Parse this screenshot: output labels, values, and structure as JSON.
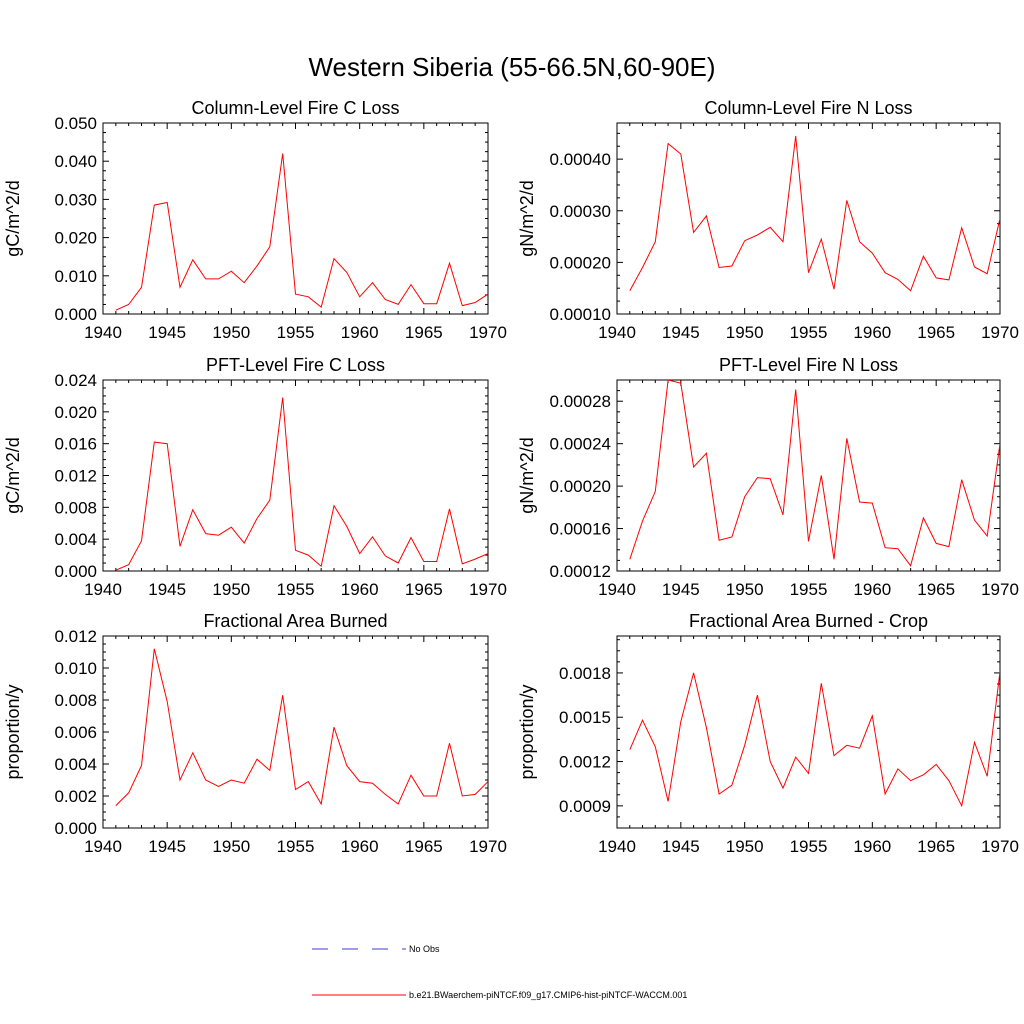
{
  "title": "Western Siberia (55-66.5N,60-90E)",
  "colors": {
    "model": "#ff0000",
    "obs": "#3b3bd6",
    "axis": "#000000"
  },
  "legend": {
    "obs_label": "No Obs",
    "model_label": "b.e21.BWaerchem-piNTCF.f09_g17.CMIP6-hist-piNTCF-WACCM.001"
  },
  "chart_data": [
    {
      "type": "line",
      "title": "Column-Level Fire C Loss",
      "xlabel": "",
      "ylabel": "gC/m^2/d",
      "xlim": [
        1940,
        1970
      ],
      "ylim": [
        0,
        0.05
      ],
      "yticks": [
        "0.000",
        "0.010",
        "0.020",
        "0.030",
        "0.040",
        "0.050"
      ],
      "xticks": [
        "1940",
        "1945",
        "1950",
        "1955",
        "1960",
        "1965",
        "1970"
      ],
      "x": [
        1941,
        1942,
        1943,
        1944,
        1945,
        1946,
        1947,
        1948,
        1949,
        1950,
        1951,
        1952,
        1953,
        1954,
        1955,
        1956,
        1957,
        1958,
        1959,
        1960,
        1961,
        1962,
        1963,
        1964,
        1965,
        1966,
        1967,
        1968,
        1969,
        1970
      ],
      "series": [
        {
          "values": [
            0.001,
            0.0025,
            0.007,
            0.0285,
            0.0292,
            0.007,
            0.0142,
            0.0092,
            0.0092,
            0.0112,
            0.0082,
            0.0126,
            0.0176,
            0.042,
            0.0052,
            0.0045,
            0.0018,
            0.0145,
            0.0109,
            0.0045,
            0.0082,
            0.0038,
            0.0025,
            0.0077,
            0.0027,
            0.0027,
            0.0133,
            0.0022,
            0.003,
            0.0052
          ]
        }
      ]
    },
    {
      "type": "line",
      "title": "Column-Level Fire N Loss",
      "xlabel": "",
      "ylabel": "gN/m^2/d",
      "xlim": [
        1940,
        1970
      ],
      "ylim": [
        0.0001,
        0.00047
      ],
      "yticks": [
        "0.00010",
        "0.00020",
        "0.00030",
        "0.00040"
      ],
      "xticks": [
        "1940",
        "1945",
        "1950",
        "1955",
        "1960",
        "1965",
        "1970"
      ],
      "x": [
        1941,
        1942,
        1943,
        1944,
        1945,
        1946,
        1947,
        1948,
        1949,
        1950,
        1951,
        1952,
        1953,
        1954,
        1955,
        1956,
        1957,
        1958,
        1959,
        1960,
        1961,
        1962,
        1963,
        1964,
        1965,
        1966,
        1967,
        1968,
        1969,
        1970
      ],
      "series": [
        {
          "values": [
            0.000145,
            0.00019,
            0.00024,
            0.00043,
            0.00041,
            0.000258,
            0.00029,
            0.00019,
            0.000193,
            0.000242,
            0.000253,
            0.000268,
            0.00024,
            0.000445,
            0.00018,
            0.000245,
            0.000148,
            0.00032,
            0.00024,
            0.000218,
            0.00018,
            0.000167,
            0.000145,
            0.000212,
            0.00017,
            0.000166,
            0.000267,
            0.000191,
            0.000178,
            0.000285
          ]
        }
      ]
    },
    {
      "type": "line",
      "title": "PFT-Level Fire C Loss",
      "xlabel": "",
      "ylabel": "gC/m^2/d",
      "xlim": [
        1940,
        1970
      ],
      "ylim": [
        0,
        0.024
      ],
      "yticks": [
        "0.000",
        "0.004",
        "0.008",
        "0.012",
        "0.016",
        "0.020",
        "0.024"
      ],
      "xticks": [
        "1940",
        "1945",
        "1950",
        "1955",
        "1960",
        "1965",
        "1970"
      ],
      "x": [
        1941,
        1942,
        1943,
        1944,
        1945,
        1946,
        1947,
        1948,
        1949,
        1950,
        1951,
        1952,
        1953,
        1954,
        1955,
        1956,
        1957,
        1958,
        1959,
        1960,
        1961,
        1962,
        1963,
        1964,
        1965,
        1966,
        1967,
        1968,
        1969,
        1970
      ],
      "series": [
        {
          "values": [
            0.0001,
            0.0008,
            0.0038,
            0.0162,
            0.016,
            0.0031,
            0.0077,
            0.0047,
            0.0045,
            0.0055,
            0.0035,
            0.0066,
            0.0089,
            0.0218,
            0.0026,
            0.002,
            0.0006,
            0.0082,
            0.0056,
            0.0022,
            0.0043,
            0.0019,
            0.001,
            0.0042,
            0.0012,
            0.0012,
            0.0078,
            0.0009,
            0.0015,
            0.0022
          ]
        }
      ]
    },
    {
      "type": "line",
      "title": "PFT-Level Fire N Loss",
      "xlabel": "",
      "ylabel": "gN/m^2/d",
      "xlim": [
        1940,
        1970
      ],
      "ylim": [
        0.00012,
        0.0003
      ],
      "yticks": [
        "0.00012",
        "0.00016",
        "0.00020",
        "0.00024",
        "0.00028"
      ],
      "xticks": [
        "1940",
        "1945",
        "1950",
        "1955",
        "1960",
        "1965",
        "1970"
      ],
      "x": [
        1941,
        1942,
        1943,
        1944,
        1945,
        1946,
        1947,
        1948,
        1949,
        1950,
        1951,
        1952,
        1953,
        1954,
        1955,
        1956,
        1957,
        1958,
        1959,
        1960,
        1961,
        1962,
        1963,
        1964,
        1965,
        1966,
        1967,
        1968,
        1969,
        1970
      ],
      "series": [
        {
          "values": [
            0.000131,
            0.000167,
            0.000195,
            0.0003,
            0.000297,
            0.000218,
            0.000231,
            0.000149,
            0.000152,
            0.00019,
            0.000208,
            0.000207,
            0.000173,
            0.000291,
            0.000148,
            0.00021,
            0.000131,
            0.000245,
            0.000185,
            0.000184,
            0.000142,
            0.000141,
            0.000125,
            0.00017,
            0.000146,
            0.000143,
            0.000206,
            0.000168,
            0.000153,
            0.00024
          ]
        }
      ]
    },
    {
      "type": "line",
      "title": "Fractional Area Burned",
      "xlabel": "",
      "ylabel": "proportion/y",
      "xlim": [
        1940,
        1970
      ],
      "ylim": [
        0,
        0.012
      ],
      "yticks": [
        "0.000",
        "0.002",
        "0.004",
        "0.006",
        "0.008",
        "0.010",
        "0.012"
      ],
      "xticks": [
        "1940",
        "1945",
        "1950",
        "1955",
        "1960",
        "1965",
        "1970"
      ],
      "x": [
        1941,
        1942,
        1943,
        1944,
        1945,
        1946,
        1947,
        1948,
        1949,
        1950,
        1951,
        1952,
        1953,
        1954,
        1955,
        1956,
        1957,
        1958,
        1959,
        1960,
        1961,
        1962,
        1963,
        1964,
        1965,
        1966,
        1967,
        1968,
        1969,
        1970
      ],
      "series": [
        {
          "values": [
            0.0014,
            0.0022,
            0.0039,
            0.0112,
            0.0079,
            0.003,
            0.0047,
            0.003,
            0.0026,
            0.003,
            0.0028,
            0.0043,
            0.0036,
            0.0083,
            0.0024,
            0.0029,
            0.0015,
            0.0063,
            0.0039,
            0.0029,
            0.0028,
            0.0021,
            0.0015,
            0.0033,
            0.002,
            0.002,
            0.0053,
            0.002,
            0.0021,
            0.0029
          ]
        }
      ]
    },
    {
      "type": "line",
      "title": "Fractional Area Burned - Crop",
      "xlabel": "",
      "ylabel": "proportion/y",
      "xlim": [
        1940,
        1970
      ],
      "ylim": [
        0.00075,
        0.00205
      ],
      "yticks": [
        "0.0009",
        "0.0012",
        "0.0015",
        "0.0018"
      ],
      "xticks": [
        "1940",
        "1945",
        "1950",
        "1955",
        "1960",
        "1965",
        "1970"
      ],
      "x": [
        1941,
        1942,
        1943,
        1944,
        1945,
        1946,
        1947,
        1948,
        1949,
        1950,
        1951,
        1952,
        1953,
        1954,
        1955,
        1956,
        1957,
        1958,
        1959,
        1960,
        1961,
        1962,
        1963,
        1964,
        1965,
        1966,
        1967,
        1968,
        1969,
        1970
      ],
      "series": [
        {
          "values": [
            0.00128,
            0.00148,
            0.0013,
            0.00093,
            0.00147,
            0.0018,
            0.00143,
            0.00098,
            0.00104,
            0.00131,
            0.00165,
            0.0012,
            0.00102,
            0.00123,
            0.00112,
            0.00173,
            0.00124,
            0.00131,
            0.00129,
            0.00151,
            0.00098,
            0.00115,
            0.00107,
            0.00111,
            0.00118,
            0.00107,
            0.0009,
            0.00133,
            0.0011,
            0.00181
          ]
        }
      ]
    }
  ]
}
